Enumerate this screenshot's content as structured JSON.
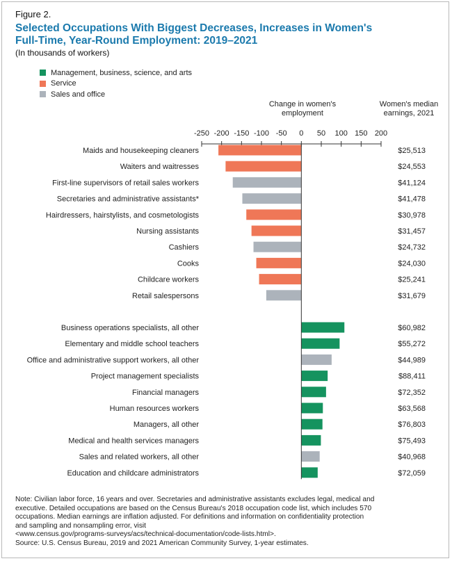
{
  "figure_label": "Figure 2.",
  "title_line1": "Selected Occupations With Biggest Decreases, Increases in Women's",
  "title_line2": "Full-Time, Year-Round Employment: 2019–2021",
  "subtitle": "(In thousands of workers)",
  "legend": [
    {
      "label": "Management, business, science, and arts",
      "color": "#15935f"
    },
    {
      "label": "Service",
      "color": "#ef7757"
    },
    {
      "label": "Sales and office",
      "color": "#acb3bb"
    }
  ],
  "column_heads": {
    "change_line1": "Change in women's",
    "change_line2": "employment",
    "earnings_line1": "Women's median",
    "earnings_line2": "earnings, 2021"
  },
  "chart_data": {
    "type": "bar",
    "orientation": "horizontal",
    "xlim": [
      -250,
      200
    ],
    "xticks": [
      -250,
      -200,
      -150,
      -100,
      -50,
      0,
      50,
      100,
      150,
      200
    ],
    "xtick_labels": [
      "-250",
      "-200",
      "-150",
      "-100",
      "-50",
      "0",
      "50",
      "100",
      "150",
      "200"
    ],
    "groups": [
      {
        "rows": [
          {
            "label": "Maids and housekeeping cleaners",
            "value": -208,
            "category": 1,
            "earnings": "$25,513"
          },
          {
            "label": "Waiters and waitresses",
            "value": -190,
            "category": 1,
            "earnings": "$24,553"
          },
          {
            "label": "First-line supervisors of retail sales workers",
            "value": -172,
            "category": 2,
            "earnings": "$41,124"
          },
          {
            "label": "Secretaries and administrative assistants*",
            "value": -148,
            "category": 2,
            "earnings": "$41,478"
          },
          {
            "label": "Hairdressers, hairstylists, and cosmetologists",
            "value": -138,
            "category": 1,
            "earnings": "$30,978"
          },
          {
            "label": "Nursing assistants",
            "value": -125,
            "category": 1,
            "earnings": "$31,457"
          },
          {
            "label": "Cashiers",
            "value": -120,
            "category": 2,
            "earnings": "$24,732"
          },
          {
            "label": "Cooks",
            "value": -113,
            "category": 1,
            "earnings": "$24,030"
          },
          {
            "label": "Childcare workers",
            "value": -106,
            "category": 1,
            "earnings": "$25,241"
          },
          {
            "label": "Retail salespersons",
            "value": -88,
            "category": 2,
            "earnings": "$31,679"
          }
        ]
      },
      {
        "rows": [
          {
            "label": "Business operations specialists, all other",
            "value": 108,
            "category": 0,
            "earnings": "$60,982"
          },
          {
            "label": "Elementary and middle school teachers",
            "value": 96,
            "category": 0,
            "earnings": "$55,272"
          },
          {
            "label": "Office and administrative support workers, all other",
            "value": 76,
            "category": 2,
            "earnings": "$44,989"
          },
          {
            "label": "Project management specialists",
            "value": 66,
            "category": 0,
            "earnings": "$88,411"
          },
          {
            "label": "Financial managers",
            "value": 62,
            "category": 0,
            "earnings": "$72,352"
          },
          {
            "label": "Human resources workers",
            "value": 54,
            "category": 0,
            "earnings": "$63,568"
          },
          {
            "label": "Managers, all other",
            "value": 53,
            "category": 0,
            "earnings": "$76,803"
          },
          {
            "label": "Medical and health services managers",
            "value": 49,
            "category": 0,
            "earnings": "$75,493"
          },
          {
            "label": "Sales and related workers, all other",
            "value": 46,
            "category": 2,
            "earnings": "$40,968"
          },
          {
            "label": "Education and childcare administrators",
            "value": 41,
            "category": 0,
            "earnings": "$72,059"
          }
        ]
      }
    ]
  },
  "notes": [
    "Note: Civilian labor force, 16 years and over. Secretaries and administrative assistants excludes legal, medical and",
    "executive. Detailed occupations are based on the Census Bureau's 2018 occupation code list, which includes 570",
    "occupations. Median earnings are inflation adjusted. For definitions and information on confidentiality protection",
    "and sampling and nonsampling error, visit",
    "<www.census.gov/programs-surveys/acs/technical-documentation/code-lists.html>.",
    "Source: U.S. Census Bureau, 2019 and 2021 American Community Survey, 1-year estimates."
  ]
}
